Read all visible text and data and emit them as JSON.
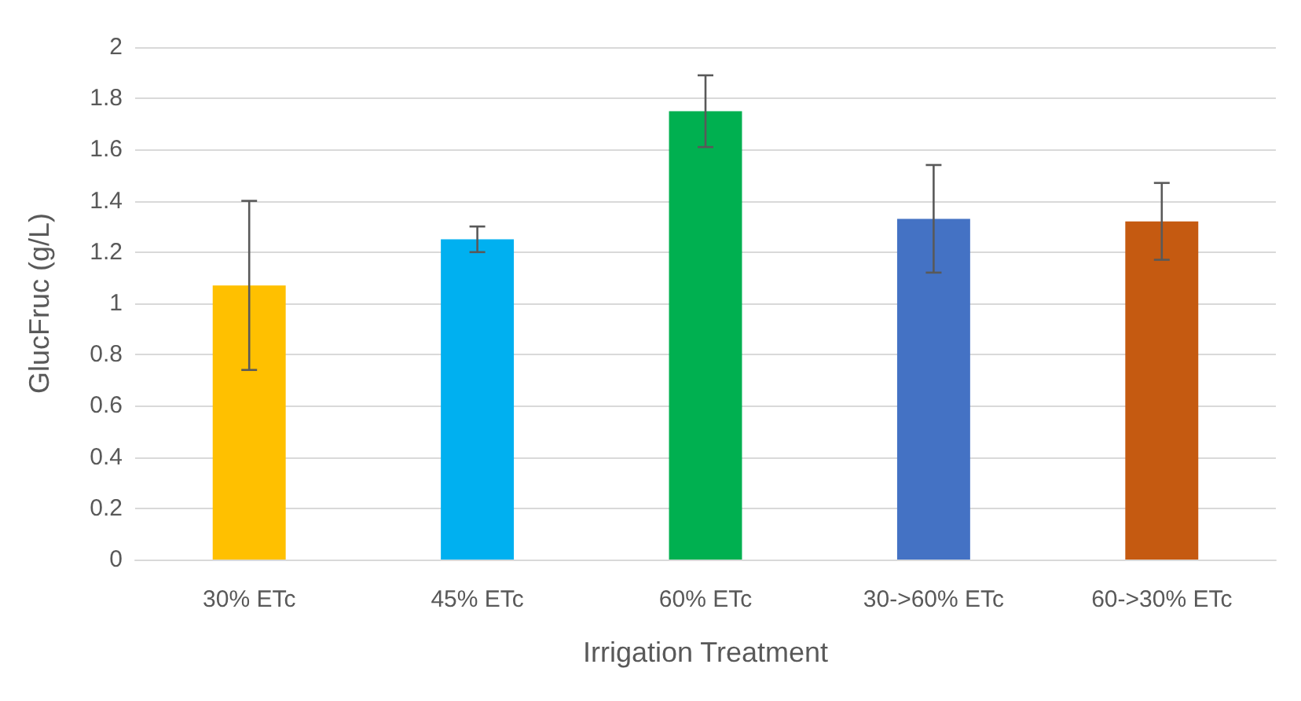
{
  "chart_data": {
    "type": "bar",
    "xlabel": "Irrigation Treatment",
    "ylabel": "GlucFruc (g/L)",
    "categories": [
      "30% ETc",
      "45% ETc",
      "60% ETc",
      "30->60% ETc",
      "60->30% ETc"
    ],
    "values": [
      1.07,
      1.25,
      1.75,
      1.33,
      1.32
    ],
    "colors": [
      "#ffc000",
      "#00b0f0",
      "#00b050",
      "#4472c4",
      "#c55a11"
    ],
    "errors": [
      0.33,
      0.05,
      0.14,
      0.21,
      0.15
    ],
    "ylim": [
      0,
      2
    ],
    "yticks": [
      0,
      0.2,
      0.4,
      0.6,
      0.8,
      1,
      1.2,
      1.4,
      1.6,
      1.8,
      2
    ],
    "grid": "y"
  }
}
